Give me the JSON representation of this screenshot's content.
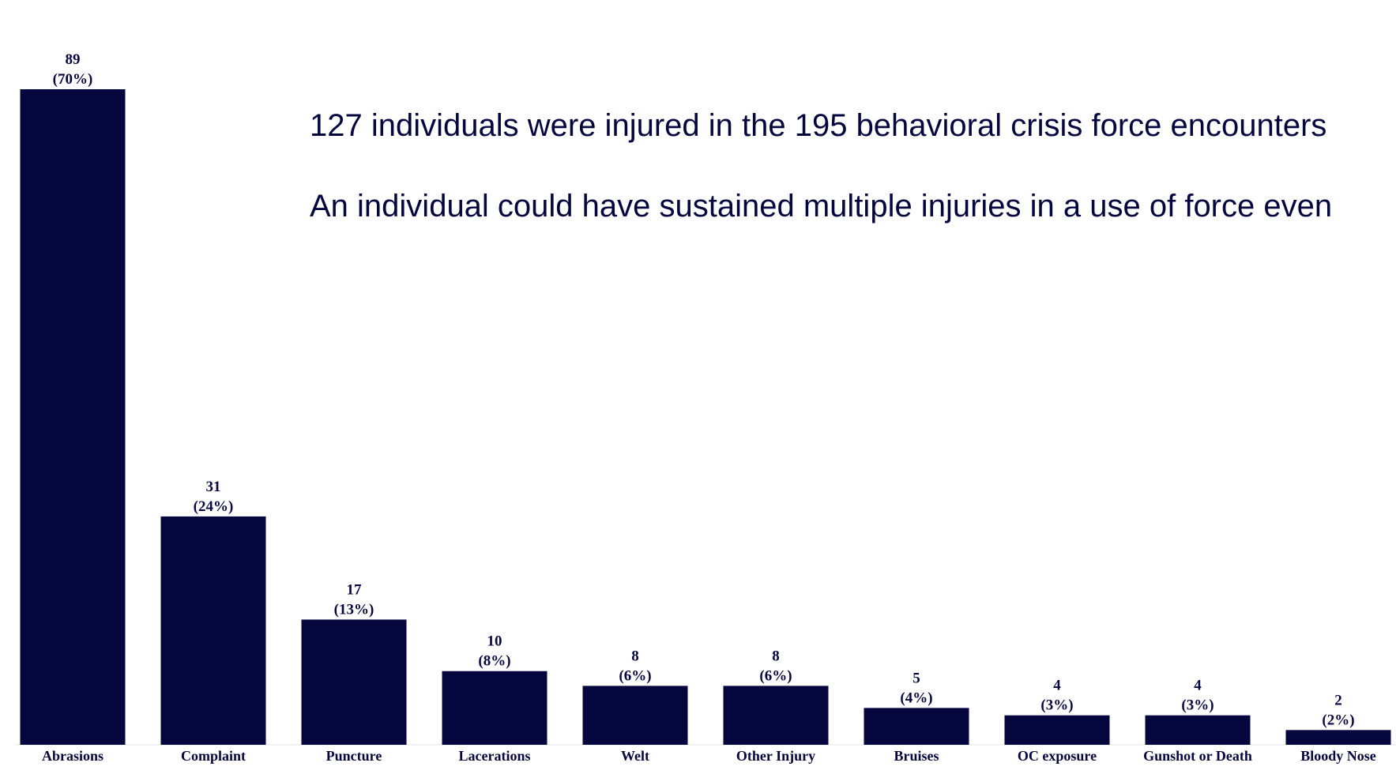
{
  "chart_data": {
    "type": "bar",
    "annotations": [
      "127 individuals were injured in the 195 behavioral crisis force encounters",
      "An individual could have sustained multiple injuries in a use of force even"
    ],
    "categories": [
      "Abrasions",
      "Complaint",
      "Puncture",
      "Lacerations",
      "Welt",
      "Other Injury",
      "Bruises",
      "OC exposure",
      "Gunshot or Death",
      "Bloody Nose"
    ],
    "values": [
      89,
      31,
      17,
      10,
      8,
      8,
      5,
      4,
      4,
      2
    ],
    "percent_labels": [
      "(70%)",
      "(24%)",
      "(13%)",
      "(8%)",
      "(6%)",
      "(6%)",
      "(4%)",
      "(3%)",
      "(3%)",
      "(2%)"
    ],
    "color": "#06063f"
  }
}
